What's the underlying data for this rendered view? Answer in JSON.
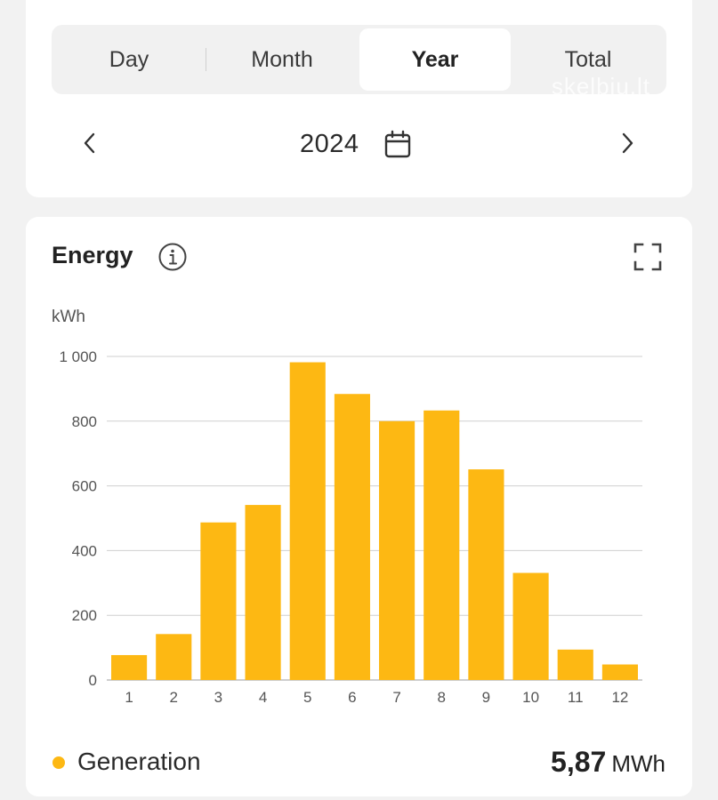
{
  "tabs": [
    {
      "label": "Day",
      "active": false
    },
    {
      "label": "Month",
      "active": false
    },
    {
      "label": "Year",
      "active": true
    },
    {
      "label": "Total",
      "active": false
    }
  ],
  "watermark": "skelbiu.lt",
  "period": {
    "label": "2024",
    "prev_icon": "chevron-left-icon",
    "next_icon": "chevron-right-icon",
    "calendar_icon": "calendar-icon"
  },
  "energy_card": {
    "title": "Energy",
    "info_icon": "info-icon",
    "expand_icon": "expand-icon"
  },
  "legend": {
    "label": "Generation",
    "color": "#FDB813"
  },
  "total": {
    "value": "5,87",
    "unit": "MWh"
  },
  "chart_data": {
    "type": "bar",
    "ylabel": "kWh",
    "categories": [
      "1",
      "2",
      "3",
      "4",
      "5",
      "6",
      "7",
      "8",
      "9",
      "10",
      "11",
      "12"
    ],
    "series": [
      {
        "name": "Generation",
        "color": "#FDB813",
        "values": [
          77,
          142,
          487,
          541,
          982,
          884,
          800,
          833,
          651,
          331,
          94,
          48
        ]
      }
    ],
    "ylim": [
      0,
      1000
    ],
    "yticks": [
      0,
      200,
      400,
      600,
      800,
      1000
    ],
    "ytick_labels": [
      "0",
      "200",
      "400",
      "600",
      "800",
      "1 000"
    ],
    "grid": true
  }
}
